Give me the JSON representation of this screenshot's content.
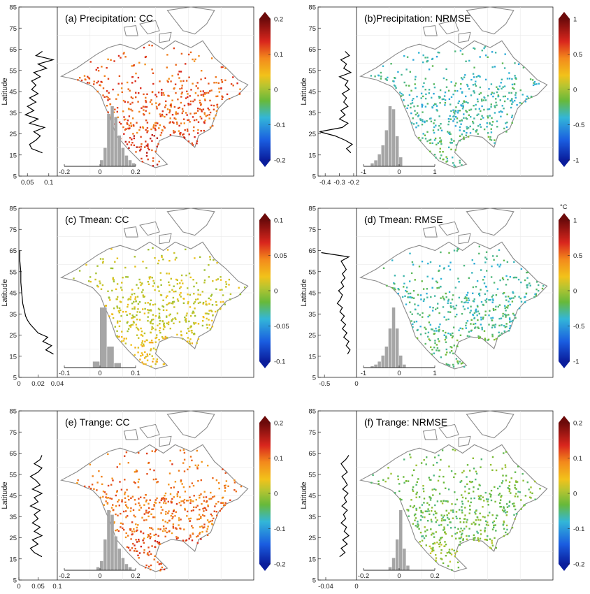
{
  "figure": {
    "lat_ticks": [
      5,
      15,
      25,
      35,
      45,
      55,
      65,
      75,
      85
    ],
    "lat_axis_label": "Latitude"
  },
  "chart_data": [
    {
      "type": "map",
      "title": "(a) Precipitation: CC",
      "colorbar": {
        "ticks": [
          "0.2",
          "0.1",
          "0",
          "-0.1",
          "-0.2"
        ],
        "unit": "",
        "range": [
          -0.2,
          0.2
        ]
      },
      "map_level": 0.11,
      "profile": {
        "xlim": [
          0.03,
          0.12
        ],
        "xticks": [
          "0.05",
          "0.1"
        ],
        "xtick_values": [
          0.05,
          0.1
        ],
        "lat": [
          16,
          18,
          20,
          22,
          24,
          26,
          28,
          30,
          32,
          34,
          36,
          38,
          40,
          42,
          44,
          46,
          48,
          50,
          52,
          54,
          56,
          58,
          60,
          62,
          64
        ],
        "values": [
          0.085,
          0.06,
          0.055,
          0.07,
          0.08,
          0.065,
          0.09,
          0.055,
          0.075,
          0.045,
          0.065,
          0.05,
          0.07,
          0.055,
          0.075,
          0.06,
          0.07,
          0.06,
          0.08,
          0.065,
          0.095,
          0.075,
          0.11,
          0.07,
          0.085
        ]
      },
      "histogram": {
        "xticks": [
          "-0.2",
          "0",
          "0.2"
        ],
        "xtick_values": [
          -0.2,
          0,
          0.2
        ],
        "xlim": [
          -0.2,
          0.2
        ],
        "bins": [
          0.0,
          0.02,
          0.04,
          0.06,
          0.08,
          0.1,
          0.12,
          0.14,
          0.16,
          0.18
        ],
        "counts": [
          4,
          12,
          34,
          39,
          32,
          20,
          12,
          7,
          4,
          2
        ]
      }
    },
    {
      "type": "map",
      "title": "(b)Precipitation: NRMSE",
      "colorbar": {
        "ticks": [
          "1",
          "0.5",
          "0",
          "-0.5",
          "-1"
        ],
        "unit": "",
        "range": [
          -1,
          1
        ]
      },
      "map_level": -0.33,
      "profile": {
        "xlim": [
          -0.45,
          -0.18
        ],
        "xticks": [
          "-0.4",
          "-0.3",
          "-0.2"
        ],
        "xtick_values": [
          -0.4,
          -0.3,
          -0.2
        ],
        "lat": [
          16,
          18,
          20,
          22,
          24,
          26,
          28,
          30,
          32,
          34,
          36,
          38,
          40,
          42,
          44,
          46,
          48,
          50,
          52,
          54,
          56,
          58,
          60,
          62,
          64
        ],
        "values": [
          -0.22,
          -0.25,
          -0.21,
          -0.26,
          -0.33,
          -0.44,
          -0.28,
          -0.24,
          -0.3,
          -0.26,
          -0.29,
          -0.24,
          -0.27,
          -0.25,
          -0.28,
          -0.23,
          -0.26,
          -0.24,
          -0.3,
          -0.22,
          -0.27,
          -0.25,
          -0.29,
          -0.23,
          -0.26
        ]
      },
      "histogram": {
        "xticks": [
          "-1",
          "0",
          "1"
        ],
        "xtick_values": [
          -1,
          0,
          1
        ],
        "xlim": [
          -1,
          1
        ],
        "bins": [
          -0.8,
          -0.7,
          -0.6,
          -0.5,
          -0.4,
          -0.3,
          -0.2,
          -0.1,
          0.0
        ],
        "counts": [
          2,
          4,
          8,
          14,
          24,
          40,
          38,
          20,
          6
        ]
      }
    },
    {
      "type": "map",
      "title": "(c) Tmean: CC",
      "colorbar": {
        "ticks": [
          "0.1",
          "0.05",
          "0",
          "-0.05",
          "-0.1"
        ],
        "unit": "",
        "range": [
          -0.1,
          0.1
        ]
      },
      "map_level": 0.01,
      "profile": {
        "xlim": [
          0,
          0.04
        ],
        "xticks": [
          "0",
          "0.02",
          "0.04"
        ],
        "xtick_values": [
          0,
          0.02,
          0.04
        ],
        "lat": [
          16,
          18,
          20,
          22,
          24,
          26,
          28,
          30,
          32,
          34,
          36,
          38,
          40,
          45,
          50,
          55,
          60,
          65
        ],
        "values": [
          0.036,
          0.028,
          0.034,
          0.025,
          0.03,
          0.02,
          0.016,
          0.012,
          0.009,
          0.007,
          0.006,
          0.005,
          0.004,
          0.003,
          0.002,
          0.002,
          0.001,
          0.001
        ]
      },
      "histogram": {
        "xticks": [
          "-0.1",
          "0",
          "0.1"
        ],
        "xtick_values": [
          -0.1,
          0,
          0.1
        ],
        "xlim": [
          -0.1,
          0.1
        ],
        "bins": [
          -0.02,
          0.0,
          0.02,
          0.04
        ],
        "counts": [
          4,
          40,
          14,
          3
        ]
      }
    },
    {
      "type": "map",
      "title": "(d) Tmean: RMSE",
      "colorbar": {
        "ticks": [
          "1",
          "0.5",
          "0",
          "-0.5",
          "-1"
        ],
        "unit": "°C",
        "range": [
          -1,
          1
        ]
      },
      "map_level": -0.3,
      "profile": {
        "xlim": [
          -0.6,
          0
        ],
        "xticks": [
          "-0.5",
          "0"
        ],
        "xtick_values": [
          -0.5,
          0
        ],
        "lat": [
          16,
          18,
          20,
          22,
          24,
          26,
          28,
          30,
          32,
          34,
          36,
          38,
          40,
          42,
          44,
          46,
          48,
          50,
          52,
          54,
          56,
          58,
          60,
          62,
          64
        ],
        "values": [
          -0.14,
          -0.1,
          -0.16,
          -0.12,
          -0.2,
          -0.15,
          -0.22,
          -0.17,
          -0.24,
          -0.19,
          -0.26,
          -0.22,
          -0.3,
          -0.25,
          -0.22,
          -0.28,
          -0.2,
          -0.24,
          -0.18,
          -0.22,
          -0.16,
          -0.2,
          -0.24,
          -0.12,
          -0.55
        ]
      },
      "histogram": {
        "xticks": [
          "-1",
          "0",
          "1"
        ],
        "xtick_values": [
          -1,
          0,
          1
        ],
        "xlim": [
          -1,
          1
        ],
        "bins": [
          -0.8,
          -0.7,
          -0.6,
          -0.5,
          -0.4,
          -0.3,
          -0.2,
          -0.1,
          0.0,
          0.1
        ],
        "counts": [
          1,
          2,
          4,
          8,
          14,
          26,
          40,
          26,
          8,
          2
        ]
      }
    },
    {
      "type": "map",
      "title": "(e) Trange: CC",
      "colorbar": {
        "ticks": [
          "0.2",
          "0.1",
          "0",
          "-0.1",
          "-0.2"
        ],
        "unit": "",
        "range": [
          -0.2,
          0.2
        ]
      },
      "map_level": 0.1,
      "profile": {
        "xlim": [
          0,
          0.1
        ],
        "xticks": [
          "0",
          "0.05",
          "0.1"
        ],
        "xtick_values": [
          0,
          0.05,
          0.1
        ],
        "lat": [
          16,
          18,
          20,
          22,
          24,
          26,
          28,
          30,
          32,
          34,
          36,
          38,
          40,
          42,
          44,
          46,
          48,
          50,
          52,
          54,
          56,
          58,
          60,
          62,
          64
        ],
        "values": [
          0.06,
          0.04,
          0.03,
          0.05,
          0.035,
          0.06,
          0.04,
          0.055,
          0.035,
          0.05,
          0.04,
          0.055,
          0.03,
          0.05,
          0.04,
          0.06,
          0.035,
          0.055,
          0.045,
          0.03,
          0.05,
          0.06,
          0.04,
          0.055,
          0.06
        ]
      },
      "histogram": {
        "xticks": [
          "-0.2",
          "0",
          "0.2"
        ],
        "xtick_values": [
          -0.2,
          0,
          0.2
        ],
        "xlim": [
          -0.2,
          0.2
        ],
        "bins": [
          -0.02,
          0.0,
          0.02,
          0.04,
          0.06,
          0.08,
          0.1,
          0.12,
          0.14,
          0.16
        ],
        "counts": [
          2,
          6,
          20,
          39,
          36,
          22,
          14,
          8,
          4,
          2
        ]
      }
    },
    {
      "type": "map",
      "title": "(f) Trange: NRMSE",
      "colorbar": {
        "ticks": [
          "0.2",
          "0.1",
          "0",
          "-0.1",
          "-0.2"
        ],
        "unit": "",
        "range": [
          -0.2,
          0.2
        ]
      },
      "map_level": -0.03,
      "profile": {
        "xlim": [
          -0.05,
          0
        ],
        "xticks": [
          "-0.04",
          "0"
        ],
        "xtick_values": [
          -0.04,
          0
        ],
        "lat": [
          16,
          18,
          20,
          22,
          24,
          26,
          28,
          30,
          32,
          34,
          36,
          38,
          40,
          42,
          44,
          46,
          48,
          50,
          52,
          54,
          56,
          58,
          60,
          62,
          64
        ],
        "values": [
          -0.022,
          -0.015,
          -0.02,
          -0.012,
          -0.018,
          -0.01,
          -0.016,
          -0.013,
          -0.02,
          -0.014,
          -0.017,
          -0.012,
          -0.019,
          -0.013,
          -0.016,
          -0.011,
          -0.018,
          -0.012,
          -0.015,
          -0.019,
          -0.012,
          -0.016,
          -0.02,
          -0.014,
          -0.01
        ]
      },
      "histogram": {
        "xticks": [
          "-0.2",
          "0",
          "0.2"
        ],
        "xtick_values": [
          -0.2,
          0,
          0.2
        ],
        "xlim": [
          -0.2,
          0.2
        ],
        "bins": [
          -0.06,
          -0.04,
          -0.02,
          0.0,
          0.02,
          0.04
        ],
        "counts": [
          2,
          8,
          20,
          39,
          14,
          3
        ]
      }
    }
  ]
}
